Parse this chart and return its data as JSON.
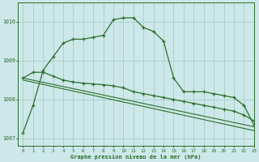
{
  "title": "Graphe pression niveau de la mer (hPa)",
  "bg_color": "#cce8e8",
  "grid_color": "#aacccc",
  "line_color": "#2d6e2d",
  "xlim": [
    -0.5,
    23
  ],
  "ylim": [
    1006.8,
    1010.5
  ],
  "yticks": [
    1007,
    1008,
    1009,
    1010
  ],
  "xticks": [
    0,
    1,
    2,
    3,
    4,
    5,
    6,
    7,
    8,
    9,
    10,
    11,
    12,
    13,
    14,
    15,
    16,
    17,
    18,
    19,
    20,
    21,
    22,
    23
  ],
  "series1_x": [
    0,
    1,
    2,
    3,
    4,
    5,
    6,
    7,
    8,
    9,
    10,
    11,
    12,
    13,
    14,
    15,
    16,
    17,
    18,
    19,
    20,
    21,
    22,
    23
  ],
  "series1_y": [
    1007.15,
    1007.85,
    1008.75,
    1009.1,
    1009.45,
    1009.55,
    1009.55,
    1009.6,
    1009.65,
    1010.05,
    1010.1,
    1010.1,
    1009.85,
    1009.75,
    1009.5,
    1008.55,
    1008.2,
    1008.2,
    1008.2,
    1008.15,
    1008.1,
    1008.05,
    1007.85,
    1007.35
  ],
  "series2_x": [
    0,
    1,
    2,
    3,
    4,
    5,
    6,
    7,
    8,
    9,
    10,
    11,
    12,
    13,
    14,
    15,
    16,
    17,
    18,
    19,
    20,
    21,
    22,
    23
  ],
  "series2_y": [
    1008.55,
    1008.7,
    1008.7,
    1008.6,
    1008.5,
    1008.45,
    1008.42,
    1008.4,
    1008.38,
    1008.35,
    1008.3,
    1008.2,
    1008.15,
    1008.1,
    1008.05,
    1008.0,
    1007.95,
    1007.9,
    1007.85,
    1007.8,
    1007.75,
    1007.7,
    1007.6,
    1007.45
  ],
  "series3_x": [
    0,
    23
  ],
  "series3_y": [
    1008.55,
    1007.3
  ],
  "series4_x": [
    0,
    23
  ],
  "series4_y": [
    1008.5,
    1007.2
  ]
}
